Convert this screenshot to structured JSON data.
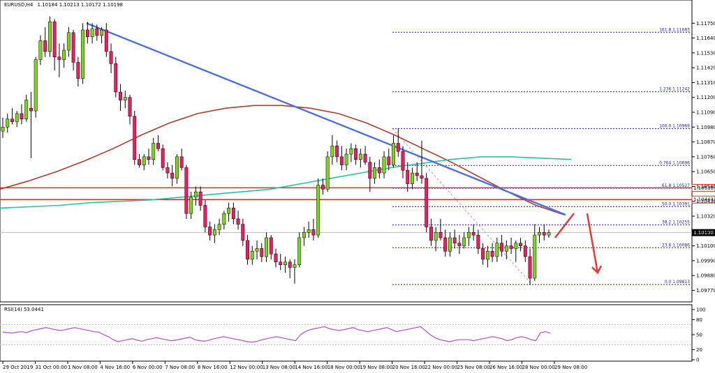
{
  "chart_data": [
    {
      "type": "candlestick",
      "title": "EURUSD,H4",
      "ohlc_header": "1.10184 1.10213 1.10172 1.10198",
      "ylim": [
        1.097,
        1.1186
      ],
      "y_ticks": [
        "1.11750",
        "1.11640",
        "1.11530",
        "1.11420",
        "1.11310",
        "1.11200",
        "1.11090",
        "1.10980",
        "1.10870",
        "1.10760",
        "1.10650",
        "1.10540",
        "1.10430",
        "1.10320",
        "1.10210",
        "1.10100",
        "1.09990",
        "1.09880",
        "1.09770"
      ],
      "x_tick_labels": [
        "29 Oct 2019",
        "31 Oct 00:00",
        "1 Nov 08:00",
        "4 Nov 16:00",
        "6 Nov 00:00",
        "7 Nov 08:00",
        "8 Nov 16:00",
        "12 Nov 00:00",
        "13 Nov 08:00",
        "14 Nov 16:00",
        "18 Nov 00:00",
        "19 Nov 08:00",
        "20 Nov 16:00",
        "22 Nov 00:00",
        "25 Nov 08:00",
        "26 Nov 16:00",
        "28 Nov 00:00",
        "29 Nov 08:00"
      ],
      "current_price_label": "1.10198",
      "current_price": 1.10198,
      "candles": [
        [
          1.1095,
          1.1105,
          1.109,
          1.1098
        ],
        [
          1.1098,
          1.1108,
          1.1094,
          1.1104
        ],
        [
          1.1104,
          1.1112,
          1.11,
          1.1102
        ],
        [
          1.1102,
          1.111,
          1.1098,
          1.1108
        ],
        [
          1.1108,
          1.1115,
          1.11,
          1.1104
        ],
        [
          1.1104,
          1.1122,
          1.1102,
          1.1118
        ],
        [
          1.1112,
          1.1124,
          1.1075,
          1.111
        ],
        [
          1.111,
          1.115,
          1.1105,
          1.1148
        ],
        [
          1.1148,
          1.1166,
          1.1144,
          1.1162
        ],
        [
          1.1162,
          1.1172,
          1.115,
          1.1154
        ],
        [
          1.1154,
          1.118,
          1.115,
          1.1176
        ],
        [
          1.1176,
          1.1178,
          1.114,
          1.115
        ],
        [
          1.115,
          1.116,
          1.1135,
          1.1148
        ],
        [
          1.1148,
          1.116,
          1.1142,
          1.1155
        ],
        [
          1.1155,
          1.1172,
          1.115,
          1.1168
        ],
        [
          1.1168,
          1.117,
          1.114,
          1.1146
        ],
        [
          1.1146,
          1.115,
          1.1128,
          1.1134
        ],
        [
          1.1134,
          1.1175,
          1.113,
          1.117
        ],
        [
          1.117,
          1.1176,
          1.116,
          1.1165
        ],
        [
          1.1165,
          1.1175,
          1.116,
          1.1171
        ],
        [
          1.1171,
          1.1174,
          1.1162,
          1.1166
        ],
        [
          1.1166,
          1.1172,
          1.116,
          1.117
        ],
        [
          1.117,
          1.1175,
          1.115,
          1.1154
        ],
        [
          1.1154,
          1.116,
          1.1138,
          1.1145
        ],
        [
          1.1145,
          1.115,
          1.112,
          1.1124
        ],
        [
          1.1124,
          1.113,
          1.111,
          1.1118
        ],
        [
          1.1118,
          1.1125,
          1.1112,
          1.112
        ],
        [
          1.112,
          1.1122,
          1.11,
          1.1106
        ],
        [
          1.1106,
          1.111,
          1.107,
          1.1074
        ],
        [
          1.1074,
          1.1078,
          1.1068,
          1.107
        ],
        [
          1.107,
          1.1078,
          1.1066,
          1.1076
        ],
        [
          1.1076,
          1.1082,
          1.107,
          1.1074
        ],
        [
          1.1074,
          1.109,
          1.107,
          1.1086
        ],
        [
          1.1086,
          1.1092,
          1.108,
          1.1082
        ],
        [
          1.1082,
          1.1085,
          1.1066,
          1.1068
        ],
        [
          1.1068,
          1.1072,
          1.106,
          1.1064
        ],
        [
          1.1064,
          1.107,
          1.1054,
          1.106
        ],
        [
          1.106,
          1.1078,
          1.1056,
          1.1076
        ],
        [
          1.1076,
          1.1082,
          1.1066,
          1.1068
        ],
        [
          1.1068,
          1.107,
          1.103,
          1.1034
        ],
        [
          1.1034,
          1.105,
          1.103,
          1.1046
        ],
        [
          1.1046,
          1.1054,
          1.104,
          1.105
        ],
        [
          1.105,
          1.1054,
          1.1036,
          1.104
        ],
        [
          1.104,
          1.1044,
          1.102,
          1.1024
        ],
        [
          1.1024,
          1.1028,
          1.1014,
          1.1018
        ],
        [
          1.1018,
          1.1026,
          1.1012,
          1.1022
        ],
        [
          1.1022,
          1.103,
          1.1018,
          1.1026
        ],
        [
          1.1026,
          1.1036,
          1.1022,
          1.1034
        ],
        [
          1.1034,
          1.1042,
          1.1028,
          1.1038
        ],
        [
          1.1038,
          1.1042,
          1.1026,
          1.103
        ],
        [
          1.103,
          1.1036,
          1.1022,
          1.1026
        ],
        [
          1.1026,
          1.103,
          1.101,
          1.1014
        ],
        [
          1.1014,
          1.1018,
          1.0996,
          1.1
        ],
        [
          1.1,
          1.101,
          1.0996,
          1.1006
        ],
        [
          1.1006,
          1.1014,
          1.1,
          1.1008
        ],
        [
          1.1008,
          1.1012,
          1.0998,
          1.1002
        ],
        [
          1.1002,
          1.102,
          1.0998,
          1.1016
        ],
        [
          1.1016,
          1.1018,
          1.1,
          1.1004
        ],
        [
          1.1004,
          1.1008,
          1.0994,
          1.0998
        ],
        [
          1.0998,
          1.1004,
          1.0992,
          1.0996
        ],
        [
          1.0996,
          1.1002,
          1.099,
          1.0998
        ],
        [
          1.0998,
          1.1,
          1.0986,
          1.0994
        ],
        [
          1.0994,
          1.1,
          1.0982,
          1.0996
        ],
        [
          1.0996,
          1.102,
          1.0994,
          1.1016
        ],
        [
          1.1016,
          1.1024,
          1.101,
          1.102
        ],
        [
          1.102,
          1.1028,
          1.1016,
          1.1022
        ],
        [
          1.1022,
          1.103,
          1.1014,
          1.1018
        ],
        [
          1.1018,
          1.106,
          1.1016,
          1.1055
        ],
        [
          1.1055,
          1.106,
          1.1048,
          1.1052
        ],
        [
          1.1052,
          1.108,
          1.105,
          1.1076
        ],
        [
          1.1076,
          1.1092,
          1.107,
          1.1084
        ],
        [
          1.1084,
          1.1088,
          1.1072,
          1.1076
        ],
        [
          1.1076,
          1.1084,
          1.1066,
          1.107
        ],
        [
          1.107,
          1.1082,
          1.1066,
          1.1078
        ],
        [
          1.1078,
          1.1086,
          1.1072,
          1.1082
        ],
        [
          1.1082,
          1.1085,
          1.107,
          1.1074
        ],
        [
          1.1074,
          1.1082,
          1.1068,
          1.1078
        ],
        [
          1.1078,
          1.1084,
          1.107,
          1.1072
        ],
        [
          1.1072,
          1.1076,
          1.105,
          1.106
        ],
        [
          1.106,
          1.1072,
          1.1056,
          1.1068
        ],
        [
          1.1068,
          1.1074,
          1.106,
          1.1064
        ],
        [
          1.1064,
          1.108,
          1.106,
          1.1076
        ],
        [
          1.1076,
          1.1082,
          1.1066,
          1.107
        ],
        [
          1.107,
          1.1092,
          1.1068,
          1.1086
        ],
        [
          1.1086,
          1.1097,
          1.1076,
          1.108
        ],
        [
          1.108,
          1.1084,
          1.106,
          1.1066
        ],
        [
          1.1066,
          1.1072,
          1.105,
          1.1056
        ],
        [
          1.1056,
          1.1068,
          1.1052,
          1.1064
        ],
        [
          1.1064,
          1.1072,
          1.1058,
          1.1062
        ],
        [
          1.1062,
          1.1088,
          1.1056,
          1.106
        ],
        [
          1.106,
          1.1064,
          1.102,
          1.1024
        ],
        [
          1.1024,
          1.103,
          1.101,
          1.1014
        ],
        [
          1.1014,
          1.1024,
          1.1006,
          1.102
        ],
        [
          1.102,
          1.103,
          1.1014,
          1.1016
        ],
        [
          1.1016,
          1.1022,
          1.1002,
          1.1006
        ],
        [
          1.1006,
          1.102,
          1.1002,
          1.1016
        ],
        [
          1.1016,
          1.1022,
          1.1008,
          1.1012
        ],
        [
          1.1012,
          1.1018,
          1.1004,
          1.101
        ],
        [
          1.101,
          1.102,
          1.1008,
          1.1016
        ],
        [
          1.1016,
          1.1024,
          1.101,
          1.102
        ],
        [
          1.102,
          1.1026,
          1.1014,
          1.1018
        ],
        [
          1.1018,
          1.1022,
          1.1004,
          1.1008
        ],
        [
          1.1008,
          1.1012,
          1.0996,
          1.1
        ],
        [
          1.1,
          1.101,
          1.0994,
          1.1006
        ],
        [
          1.1006,
          1.1012,
          1.0998,
          1.1002
        ],
        [
          1.1002,
          1.1016,
          1.0998,
          1.1012
        ],
        [
          1.1012,
          1.1018,
          1.1002,
          1.1006
        ],
        [
          1.1006,
          1.1014,
          1.1,
          1.101
        ],
        [
          1.101,
          1.1016,
          1.1004,
          1.1008
        ],
        [
          1.1008,
          1.1014,
          1.0998,
          1.1012
        ],
        [
          1.1012,
          1.1016,
          1.1006,
          1.101
        ],
        [
          1.101,
          1.1014,
          1.0998,
          1.1002
        ],
        [
          1.1002,
          1.1008,
          1.0981,
          1.0986
        ],
        [
          1.0986,
          1.1026,
          1.0984,
          1.1018
        ],
        [
          1.1018,
          1.1024,
          1.1012,
          1.102
        ],
        [
          1.102,
          1.1026,
          1.1014,
          1.1018
        ],
        [
          1.1018,
          1.1022,
          1.1016,
          1.10198
        ]
      ],
      "series": [
        {
          "type": "line",
          "color": "#b03a2e",
          "values": [
            1.1052,
            1.1058,
            1.1065,
            1.1073,
            1.1082,
            1.1092,
            1.1101,
            1.1108,
            1.1112,
            1.1114,
            1.1114,
            1.1112,
            1.1108,
            1.1101,
            1.1092,
            1.1082,
            1.1072,
            1.1061,
            1.105,
            1.104,
            1.1033
          ]
        },
        {
          "type": "line",
          "color": "#20c997",
          "values": [
            1.1038,
            1.1039,
            1.104,
            1.1042,
            1.1043,
            1.1044,
            1.1046,
            1.1048,
            1.105,
            1.1052,
            1.1056,
            1.106,
            1.1064,
            1.1068,
            1.1071,
            1.1074,
            1.1076,
            1.1076,
            1.1075,
            1.1074
          ]
        }
      ],
      "trendline": {
        "color": "#4a6fdc",
        "from_price": 1.1175,
        "to_price": 1.1033
      },
      "horizontal_levels": [
        {
          "price": 1.1053,
          "label": "1.10530",
          "color": "#d32f2f"
        },
        {
          "price": 1.10443,
          "label": "1.10443",
          "color": "#d32f2f"
        }
      ],
      "fibonacci": {
        "color": "#1d1d9b",
        "levels": [
          {
            "ratio": "161.8",
            "price": 1.11683,
            "label": "161.8  1.11683"
          },
          {
            "ratio": "123.6",
            "price": 1.11242,
            "label": "1.236  1.11242"
          },
          {
            "ratio": "100.0",
            "price": 1.10969,
            "label": "100.0  1.10969"
          },
          {
            "ratio": "76.4",
            "price": 1.10696,
            "label": "0.764  1.10696"
          },
          {
            "ratio": "61.8",
            "price": 1.10527,
            "label": "61.8  1.10527"
          },
          {
            "ratio": "50.0",
            "price": 1.10391,
            "label": "50.0  1.10391"
          },
          {
            "ratio": "38.2",
            "price": 1.10255,
            "label": "38.2  1.10255"
          },
          {
            "ratio": "23.6",
            "price": 1.10086,
            "label": "23.6  1.10086"
          },
          {
            "ratio": "0.0",
            "price": 1.09813,
            "label": "0.0  1.09813"
          }
        ]
      },
      "annotation_arrows": [
        {
          "type": "up",
          "color": "#e53935"
        },
        {
          "type": "down",
          "color": "#e53935"
        }
      ]
    },
    {
      "type": "line",
      "title": "RSI(14) 53.0441",
      "ylim": [
        0,
        100
      ],
      "y_ticks": [
        100,
        80,
        50,
        20,
        0
      ],
      "y_tick_labels": [
        "100",
        "80",
        "50",
        "20",
        "0"
      ],
      "levels": [
        70,
        30
      ],
      "color": "#b04fc0",
      "values": [
        55,
        54,
        53,
        55,
        56,
        54,
        58,
        60,
        62,
        64,
        62,
        60,
        58,
        60,
        62,
        64,
        62,
        60,
        58,
        56,
        55,
        50,
        46,
        40,
        36,
        38,
        40,
        42,
        39,
        37,
        40,
        42,
        44,
        42,
        40,
        38,
        39,
        41,
        43,
        45,
        40,
        38,
        37,
        39,
        42,
        44,
        46,
        44,
        42,
        40,
        38,
        36,
        35,
        37,
        40,
        42,
        44,
        46,
        44,
        42,
        40,
        38,
        50,
        56,
        60,
        62,
        64,
        66,
        62,
        60,
        58,
        60,
        62,
        64,
        60,
        58,
        56,
        58,
        60,
        62,
        64,
        60,
        56,
        58,
        60,
        62,
        64,
        66,
        58,
        50,
        44,
        40,
        38,
        36,
        38,
        40,
        40,
        40,
        38,
        40,
        42,
        44,
        46,
        44,
        42,
        38,
        40,
        44,
        46,
        44,
        40,
        38,
        54,
        56,
        53
      ]
    }
  ]
}
